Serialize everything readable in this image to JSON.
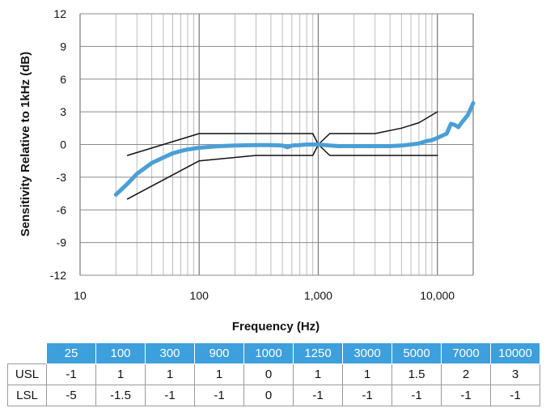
{
  "chart_data": {
    "type": "line",
    "title": "",
    "xlabel": "Frequency (Hz)",
    "ylabel": "Sensitivity Relative to 1kHz (dB)",
    "xscale": "log",
    "xlim": [
      10,
      20000
    ],
    "ylim": [
      -12,
      12
    ],
    "x_tick_labels": [
      "10",
      "100",
      "1,000",
      "10,000"
    ],
    "y_ticks": [
      12,
      9,
      6,
      3,
      0,
      -3,
      -6,
      -9,
      -12
    ],
    "grid": true,
    "series": [
      {
        "color": "#4a9fd6",
        "x": [
          20,
          25,
          30,
          40,
          50,
          60,
          70,
          80,
          100,
          150,
          200,
          300,
          400,
          500,
          550,
          600,
          700,
          800,
          1000,
          1250,
          1500,
          2000,
          3000,
          4000,
          5000,
          6000,
          7000,
          8000,
          9000,
          10000,
          12000,
          13000,
          14000,
          15000,
          16000,
          18000,
          20000
        ],
        "y": [
          -4.6,
          -3.6,
          -2.7,
          -1.7,
          -1.2,
          -0.8,
          -0.6,
          -0.45,
          -0.3,
          -0.15,
          -0.1,
          -0.05,
          -0.05,
          -0.1,
          -0.25,
          -0.1,
          -0.05,
          0,
          0,
          -0.1,
          -0.15,
          -0.15,
          -0.15,
          -0.15,
          -0.1,
          0,
          0.1,
          0.3,
          0.4,
          0.6,
          1.0,
          1.9,
          1.8,
          1.6,
          2.0,
          2.7,
          3.8
        ]
      },
      {
        "color": "#111111",
        "x": [
          25,
          100,
          900,
          1000,
          1250,
          3000,
          5000,
          7000,
          10000
        ],
        "y": [
          -1,
          1,
          1,
          0,
          1,
          1,
          1.5,
          2,
          3
        ]
      },
      {
        "color": "#111111",
        "x": [
          25,
          100,
          300,
          900,
          1000,
          1250,
          3000,
          5000,
          7000,
          10000
        ],
        "y": [
          -5,
          -1.5,
          -1,
          -1,
          0,
          -1,
          -1,
          -1,
          -1,
          -1
        ]
      }
    ]
  },
  "table": {
    "frequencies": [
      "25",
      "100",
      "300",
      "900",
      "1000",
      "1250",
      "3000",
      "5000",
      "7000",
      "10000"
    ],
    "rows": [
      {
        "label": "USL",
        "values": [
          "-1",
          "1",
          "1",
          "1",
          "0",
          "1",
          "1",
          "1.5",
          "2",
          "3"
        ]
      },
      {
        "label": "LSL",
        "values": [
          "-5",
          "-1.5",
          "-1",
          "-1",
          "0",
          "-1",
          "-1",
          "-1",
          "-1",
          "-1"
        ]
      }
    ]
  }
}
